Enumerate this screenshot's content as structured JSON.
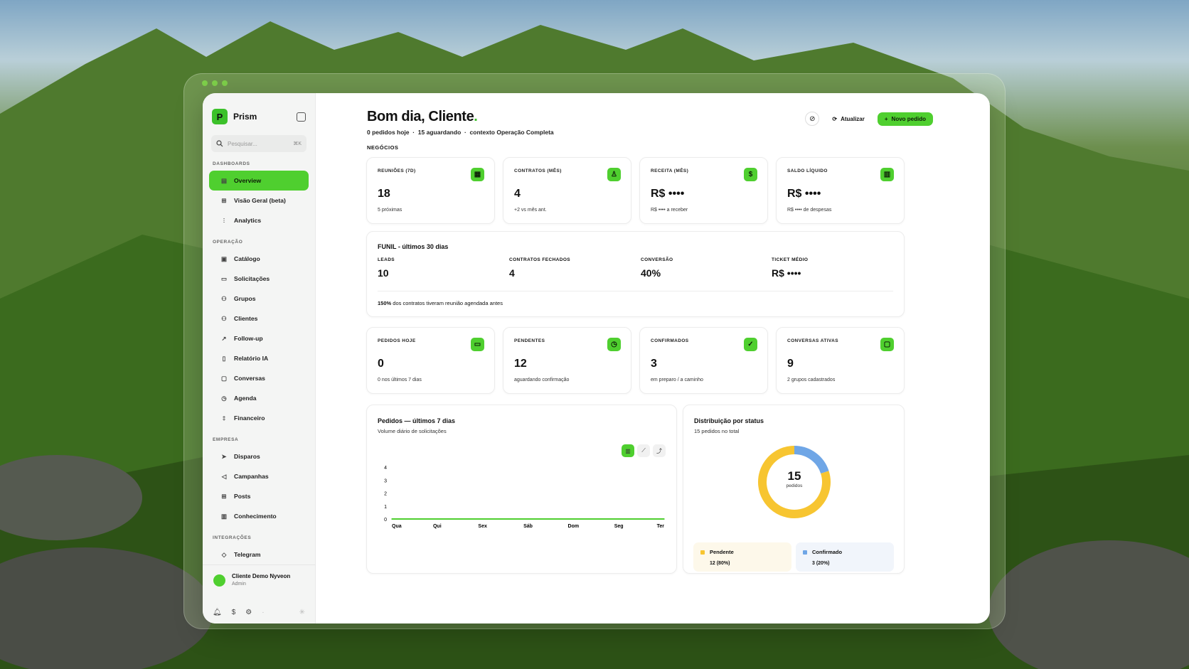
{
  "app": {
    "name": "Prism",
    "logo_letter": "P"
  },
  "search": {
    "placeholder": "Pesquisar...",
    "shortcut": "⌘K"
  },
  "sidebar": {
    "sections": [
      {
        "title": "DASHBOARDS",
        "items": [
          {
            "label": "Overview",
            "icon": "layout-icon",
            "active": true
          },
          {
            "label": "Visão Geral (beta)",
            "icon": "grid-icon"
          },
          {
            "label": "Analytics",
            "icon": "analytics-icon"
          }
        ]
      },
      {
        "title": "OPERAÇÃO",
        "items": [
          {
            "label": "Catálogo",
            "icon": "package-icon"
          },
          {
            "label": "Solicitações",
            "icon": "clipboard-icon"
          },
          {
            "label": "Grupos",
            "icon": "users-icon"
          },
          {
            "label": "Clientes",
            "icon": "user-group-icon"
          },
          {
            "label": "Follow-up",
            "icon": "follow-up-icon"
          },
          {
            "label": "Relatório IA",
            "icon": "file-icon"
          },
          {
            "label": "Conversas",
            "icon": "chat-icon"
          },
          {
            "label": "Agenda",
            "icon": "clock-icon"
          },
          {
            "label": "Financeiro",
            "icon": "finance-icon"
          }
        ]
      },
      {
        "title": "EMPRESA",
        "items": [
          {
            "label": "Disparos",
            "icon": "send-icon"
          },
          {
            "label": "Campanhas",
            "icon": "megaphone-icon"
          },
          {
            "label": "Posts",
            "icon": "posts-icon"
          },
          {
            "label": "Conhecimento",
            "icon": "book-icon"
          }
        ]
      },
      {
        "title": "INTEGRAÇÕES",
        "items": [
          {
            "label": "Telegram",
            "icon": "telegram-icon"
          }
        ]
      }
    ],
    "user": {
      "name": "Cliente Demo Nyveon",
      "role": "Admin"
    }
  },
  "header": {
    "greeting": "Bom dia, Cliente",
    "greeting_dot": ".",
    "sub_orders": "0 pedidos hoje",
    "sub_waiting": "15 aguardando",
    "sub_context": "contexto Operação Completa",
    "refresh_label": "Atualizar",
    "new_order_label": "Novo pedido"
  },
  "negocios_title": "NEGÓCIOS",
  "kpis": [
    {
      "label": "REUNIÕES (7D)",
      "value": "18",
      "hint": "5 próximas",
      "icon": "calendar-icon"
    },
    {
      "label": "CONTRATOS (MÊS)",
      "value": "4",
      "hint": "+2 vs mês ant.",
      "icon": "person-icon"
    },
    {
      "label": "RECEITA (MÊS)",
      "value": "R$ ••••",
      "hint": "R$ •••• a receber",
      "icon": "dollar-icon"
    },
    {
      "label": "SALDO LÍQUIDO",
      "value": "R$ ••••",
      "hint": "R$ •••• de despesas",
      "icon": "bar-chart-icon"
    }
  ],
  "funnel": {
    "title": "FUNIL - últimos 30 dias",
    "metrics": [
      {
        "label": "LEADS",
        "value": "10"
      },
      {
        "label": "CONTRATOS FECHADOS",
        "value": "4"
      },
      {
        "label": "CONVERSÃO",
        "value": "40%"
      },
      {
        "label": "TICKET MÉDIO",
        "value": "R$ ••••"
      }
    ],
    "note_bold": "150%",
    "note_text": " dos contratos tiveram reunião agendada antes"
  },
  "ops": [
    {
      "label": "PEDIDOS  HOJE",
      "value": "0",
      "hint": "0 nos últimos 7 dias",
      "icon": "clipboard-icon"
    },
    {
      "label": "PENDENTES",
      "value": "12",
      "hint": "aguardando confirmação",
      "icon": "clock-icon"
    },
    {
      "label": "CONFIRMADOS",
      "value": "3",
      "hint": "em preparo / a caminho",
      "icon": "check-icon"
    },
    {
      "label": "CONVERSAS  ATIVAS",
      "value": "9",
      "hint": "2 grupos cadastrados",
      "icon": "chat-icon"
    }
  ],
  "chart_data": [
    {
      "type": "line",
      "title": "Pedidos — últimos 7 dias",
      "subtitle": "Volume diário de solicitações",
      "categories": [
        "Qua",
        "Qui",
        "Sex",
        "Sáb",
        "Dom",
        "Seg",
        "Ter"
      ],
      "values": [
        0,
        0,
        0,
        0,
        0,
        0,
        0
      ],
      "yticks": [
        "0",
        "1",
        "2",
        "3",
        "4"
      ],
      "ylim": [
        0,
        4
      ],
      "color": "#4fcf2f",
      "grid": false
    },
    {
      "type": "pie",
      "title": "Distribuição por status",
      "subtitle": "15 pedidos no total",
      "center_value": "15",
      "center_label": "pedidos",
      "slices": [
        {
          "name": "Pendente",
          "value": 12,
          "pct_label": "12 (80%)",
          "color": "#f7c531"
        },
        {
          "name": "Confirmado",
          "value": 3,
          "pct_label": "3 (20%)",
          "color": "#6fa6e6"
        }
      ]
    }
  ]
}
